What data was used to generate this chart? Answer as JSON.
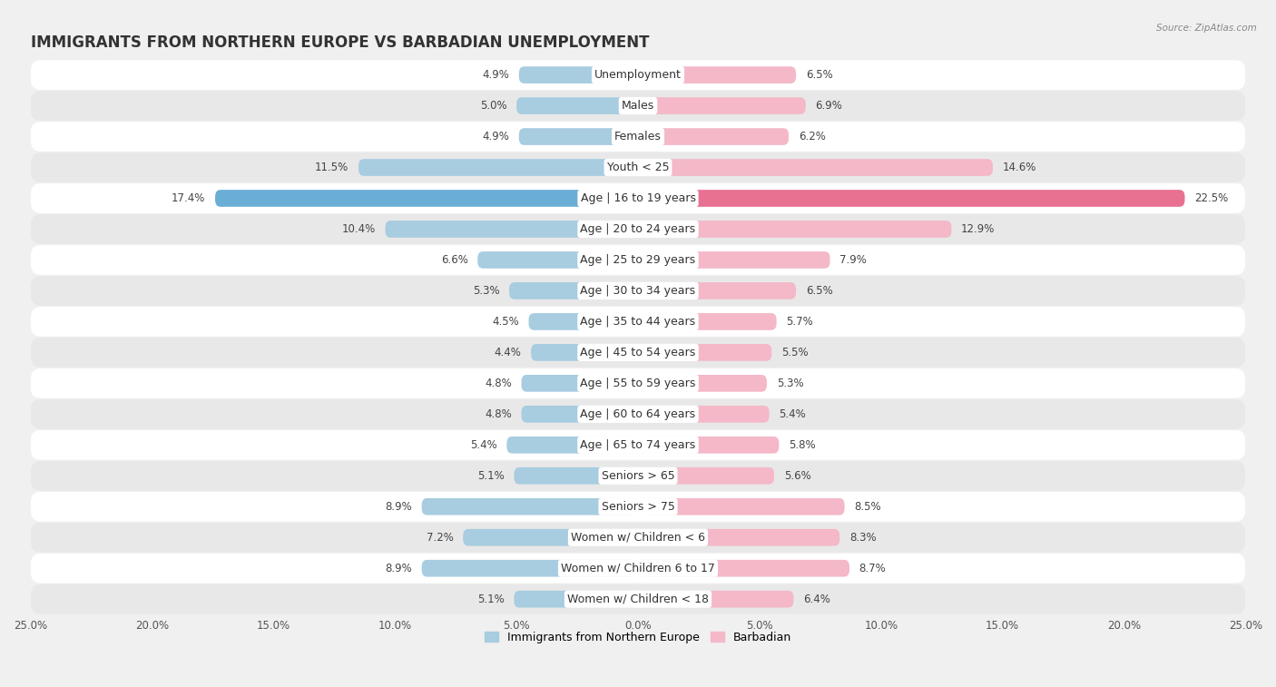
{
  "title": "IMMIGRANTS FROM NORTHERN EUROPE VS BARBADIAN UNEMPLOYMENT",
  "source": "Source: ZipAtlas.com",
  "categories": [
    "Unemployment",
    "Males",
    "Females",
    "Youth < 25",
    "Age | 16 to 19 years",
    "Age | 20 to 24 years",
    "Age | 25 to 29 years",
    "Age | 30 to 34 years",
    "Age | 35 to 44 years",
    "Age | 45 to 54 years",
    "Age | 55 to 59 years",
    "Age | 60 to 64 years",
    "Age | 65 to 74 years",
    "Seniors > 65",
    "Seniors > 75",
    "Women w/ Children < 6",
    "Women w/ Children 6 to 17",
    "Women w/ Children < 18"
  ],
  "left_values": [
    4.9,
    5.0,
    4.9,
    11.5,
    17.4,
    10.4,
    6.6,
    5.3,
    4.5,
    4.4,
    4.8,
    4.8,
    5.4,
    5.1,
    8.9,
    7.2,
    8.9,
    5.1
  ],
  "right_values": [
    6.5,
    6.9,
    6.2,
    14.6,
    22.5,
    12.9,
    7.9,
    6.5,
    5.7,
    5.5,
    5.3,
    5.4,
    5.8,
    5.6,
    8.5,
    8.3,
    8.7,
    6.4
  ],
  "left_color": "#a8cce0",
  "right_color": "#f4b8c8",
  "highlight_left_color": "#6aaed6",
  "highlight_right_color": "#e87090",
  "highlight_rows": [
    4
  ],
  "xlim": 25.0,
  "bg_color": "#f0f0f0",
  "row_bg_white": "#ffffff",
  "row_bg_gray": "#e8e8e8",
  "title_fontsize": 12,
  "label_fontsize": 9,
  "value_fontsize": 8.5,
  "legend_left": "Immigrants from Northern Europe",
  "legend_right": "Barbadian"
}
